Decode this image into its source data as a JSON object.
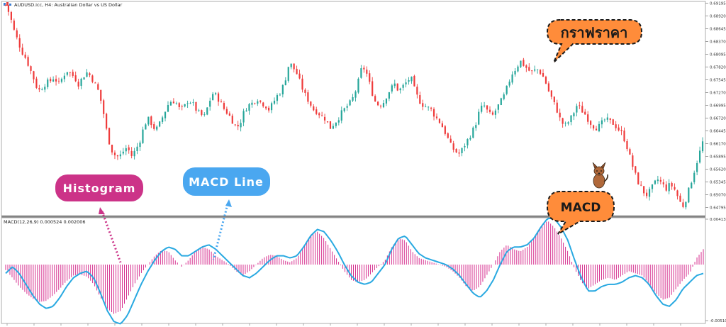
{
  "window": {
    "price_header": "AUDUSD.icc, H4:  Australian Dollar vs US Dollar",
    "macd_header": "MACD(12,26,9) 0.000524 0.002006"
  },
  "callouts": {
    "price_chart": "กราฟราคา",
    "macd": "MACD",
    "histogram": "Histogram",
    "macd_line": "MACD Line"
  },
  "colors": {
    "bull_candle": "#26a69a",
    "bear_candle": "#ef3b3b",
    "histogram": "#d62d8e",
    "macd_line": "#29a9e1",
    "callout_orange": "#ff8c3a",
    "pill_magenta": "#cc3388",
    "pill_blue": "#4aa7f0"
  },
  "chart_data": [
    {
      "type": "candlestick",
      "title": "AUDUSD.icc, H4:  Australian Dollar vs US Dollar",
      "ylim": [
        0.6465,
        0.692
      ],
      "y_ticks": [
        "0.69195",
        "0.68920",
        "0.68645",
        "0.68370",
        "0.68095",
        "0.67820",
        "0.67545",
        "0.67270",
        "0.66995",
        "0.66720",
        "0.66445",
        "0.66170",
        "0.65895",
        "0.65620",
        "0.65345",
        "0.65070",
        "0.64795"
      ],
      "y_tick_values": [
        0.69195,
        0.6892,
        0.68645,
        0.6837,
        0.68095,
        0.6782,
        0.67545,
        0.6727,
        0.66995,
        0.6672,
        0.66445,
        0.6617,
        0.65895,
        0.6562,
        0.65345,
        0.6507,
        0.64795
      ],
      "close_path": [
        0.6915,
        0.6895,
        0.6862,
        0.6838,
        0.6815,
        0.68,
        0.6778,
        0.6755,
        0.673,
        0.6738,
        0.6748,
        0.6752,
        0.676,
        0.6745,
        0.6758,
        0.6775,
        0.6768,
        0.676,
        0.6745,
        0.676,
        0.677,
        0.6762,
        0.6745,
        0.6728,
        0.669,
        0.664,
        0.6605,
        0.6592,
        0.6588,
        0.66,
        0.661,
        0.659,
        0.6602,
        0.662,
        0.665,
        0.6672,
        0.666,
        0.6645,
        0.666,
        0.668,
        0.67,
        0.671,
        0.6706,
        0.669,
        0.6695,
        0.671,
        0.6705,
        0.669,
        0.668,
        0.6675,
        0.67,
        0.6725,
        0.672,
        0.6705,
        0.669,
        0.668,
        0.6665,
        0.665,
        0.6665,
        0.669,
        0.67,
        0.6705,
        0.6715,
        0.6705,
        0.67,
        0.669,
        0.6705,
        0.672,
        0.673,
        0.6755,
        0.6792,
        0.678,
        0.6765,
        0.674,
        0.672,
        0.6705,
        0.669,
        0.6685,
        0.6675,
        0.667,
        0.665,
        0.666,
        0.667,
        0.6685,
        0.6695,
        0.6705,
        0.672,
        0.675,
        0.6785,
        0.677,
        0.674,
        0.671,
        0.67,
        0.6702,
        0.672,
        0.6735,
        0.6745,
        0.673,
        0.674,
        0.675,
        0.676,
        0.673,
        0.671,
        0.67,
        0.6695,
        0.669,
        0.6675,
        0.6665,
        0.665,
        0.663,
        0.661,
        0.66,
        0.6595,
        0.661,
        0.6625,
        0.664,
        0.666,
        0.669,
        0.67,
        0.6685,
        0.6675,
        0.669,
        0.6705,
        0.672,
        0.6745,
        0.6768,
        0.678,
        0.6795,
        0.6785,
        0.6775,
        0.677,
        0.6778,
        0.677,
        0.6755,
        0.673,
        0.671,
        0.669,
        0.6665,
        0.6655,
        0.6665,
        0.668,
        0.67,
        0.669,
        0.668,
        0.6665,
        0.6655,
        0.665,
        0.666,
        0.667,
        0.6665,
        0.666,
        0.665,
        0.664,
        0.662,
        0.659,
        0.656,
        0.6535,
        0.652,
        0.6505,
        0.6515,
        0.653,
        0.654,
        0.653,
        0.652,
        0.653,
        0.652,
        0.65,
        0.648,
        0.65,
        0.653,
        0.656,
        0.659,
        0.662
      ]
    },
    {
      "type": "bar+line",
      "title": "MACD(12,26,9) 0.000524 0.002006",
      "ylim": [
        -0.0051,
        0.00413
      ],
      "y_ticks": [
        "0.00413",
        "-0.00510"
      ],
      "y_tick_values": [
        0.00413,
        -0.0051
      ],
      "series": [
        {
          "name": "Histogram",
          "values": [
            -0.0005,
            -0.0012,
            -0.002,
            -0.0026,
            -0.0031,
            -0.0034,
            -0.0033,
            -0.0028,
            -0.0022,
            -0.0015,
            -0.001,
            -0.0009,
            -0.0011,
            -0.0018,
            -0.003,
            -0.004,
            -0.0045,
            -0.0042,
            -0.003,
            -0.0018,
            -0.0008,
            0.0,
            0.0008,
            0.0013,
            0.0012,
            0.0004,
            -0.0002,
            0.0004,
            0.0012,
            0.0016,
            0.0014,
            0.0008,
            0.0004,
            0.0,
            -0.0006,
            -0.001,
            -0.0006,
            0.0,
            0.0006,
            0.0009,
            0.0008,
            0.0004,
            0.0002,
            0.0006,
            0.0016,
            0.0026,
            0.003,
            0.0024,
            0.0014,
            0.0004,
            -0.0006,
            -0.0014,
            -0.0016,
            -0.0014,
            -0.0008,
            -0.0002,
            0.0004,
            0.0016,
            0.0024,
            0.0022,
            0.0012,
            0.0006,
            0.0004,
            0.0002,
            0.0,
            -0.0002,
            -0.0006,
            -0.0012,
            -0.002,
            -0.0024,
            -0.002,
            -0.001,
            0.0,
            0.0012,
            0.0018,
            0.0014,
            0.0012,
            0.0016,
            0.0024,
            0.0034,
            0.004,
            0.0034,
            0.0024,
            0.0012,
            -0.0004,
            -0.0016,
            -0.0022,
            -0.0018,
            -0.0014,
            -0.0012,
            -0.0014,
            -0.001,
            -0.0006,
            -0.0008,
            -0.001,
            -0.0018,
            -0.0026,
            -0.0032,
            -0.003,
            -0.0022,
            -0.0014,
            -0.0008,
            0.0006,
            0.0014
          ]
        },
        {
          "name": "MACD Line",
          "values": [
            -0.0008,
            -0.0002,
            -0.0008,
            -0.0018,
            -0.0028,
            -0.0036,
            -0.004,
            -0.0038,
            -0.003,
            -0.002,
            -0.0012,
            -0.0008,
            -0.0006,
            -0.0012,
            -0.0026,
            -0.0042,
            -0.0052,
            -0.0054,
            -0.0046,
            -0.0032,
            -0.0018,
            -0.0006,
            0.0004,
            0.0012,
            0.0016,
            0.0014,
            0.0008,
            0.0008,
            0.0012,
            0.0016,
            0.0018,
            0.0014,
            0.0008,
            0.0002,
            -0.0004,
            -0.001,
            -0.0012,
            -0.0008,
            -0.0002,
            0.0004,
            0.0008,
            0.0008,
            0.0006,
            0.0008,
            0.0016,
            0.0026,
            0.0032,
            0.003,
            0.0022,
            0.0012,
            0.0,
            -0.001,
            -0.0016,
            -0.0018,
            -0.0016,
            -0.0008,
            0.0,
            0.0014,
            0.0024,
            0.0026,
            0.0018,
            0.001,
            0.0006,
            0.0004,
            0.0002,
            0.0,
            -0.0004,
            -0.001,
            -0.0018,
            -0.0026,
            -0.003,
            -0.0024,
            -0.0014,
            0.0,
            0.0012,
            0.0016,
            0.0016,
            0.0018,
            0.0024,
            0.0034,
            0.0042,
            0.0042,
            0.0034,
            0.0022,
            0.0004,
            -0.0012,
            -0.0024,
            -0.0024,
            -0.002,
            -0.0018,
            -0.0018,
            -0.0016,
            -0.0012,
            -0.001,
            -0.0012,
            -0.0018,
            -0.0028,
            -0.0036,
            -0.0038,
            -0.0032,
            -0.0022,
            -0.0016,
            -0.001,
            -0.0008
          ]
        }
      ]
    }
  ]
}
